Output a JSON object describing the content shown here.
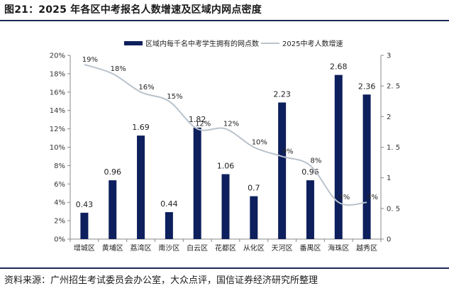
{
  "figure": {
    "title": "图21：2025 年各区中考报名人数增速及区域内网点密度",
    "source": "资料来源：广州招生考试委员会办公室，大众点评，国信证券经济研究所整理"
  },
  "chart_data": {
    "type": "bar+line",
    "categories": [
      "增城区",
      "黄埔区",
      "荔湾区",
      "南沙区",
      "白云区",
      "花都区",
      "从化区",
      "天河区",
      "番禺区",
      "海珠区",
      "越秀区"
    ],
    "series": [
      {
        "name": "区域内每千名中考学生拥有的网点数",
        "type": "bar",
        "axis": "right",
        "values": [
          0.43,
          0.96,
          1.69,
          0.44,
          1.82,
          1.06,
          0.7,
          2.23,
          0.96,
          2.68,
          2.36
        ],
        "labels": [
          "0.43",
          "0.96",
          "1.69",
          "0.44",
          "1.82",
          "1.06",
          "0.7",
          "2.23",
          "0.96",
          "2.68",
          "2.36"
        ],
        "color": "#0d1f5c"
      },
      {
        "name": "2025中考人数增速",
        "type": "line",
        "axis": "left",
        "values": [
          0.19,
          0.18,
          0.16,
          0.15,
          0.12,
          0.12,
          0.1,
          0.09,
          0.08,
          0.04,
          0.04
        ],
        "labels": [
          "19%",
          "18%",
          "16%",
          "15%",
          "12%",
          "12%",
          "10%",
          "9%",
          "8%",
          "4%",
          "4%"
        ],
        "color": "#b9c3cc"
      }
    ],
    "y_left": {
      "min": 0,
      "max": 0.2,
      "ticks": [
        0,
        0.02,
        0.04,
        0.06,
        0.08,
        0.1,
        0.12,
        0.14,
        0.16,
        0.18,
        0.2
      ],
      "tick_labels": [
        "0%",
        "2%",
        "4%",
        "6%",
        "8%",
        "10%",
        "12%",
        "14%",
        "16%",
        "18%",
        "20%"
      ]
    },
    "y_right": {
      "min": 0,
      "max": 3,
      "ticks": [
        0,
        0.5,
        1,
        1.5,
        2,
        2.5,
        3
      ],
      "tick_labels": [
        "0",
        "0. 5",
        "1",
        "1. 5",
        "2",
        "2. 5",
        "3"
      ]
    },
    "legend_position": "top",
    "grid": false
  }
}
